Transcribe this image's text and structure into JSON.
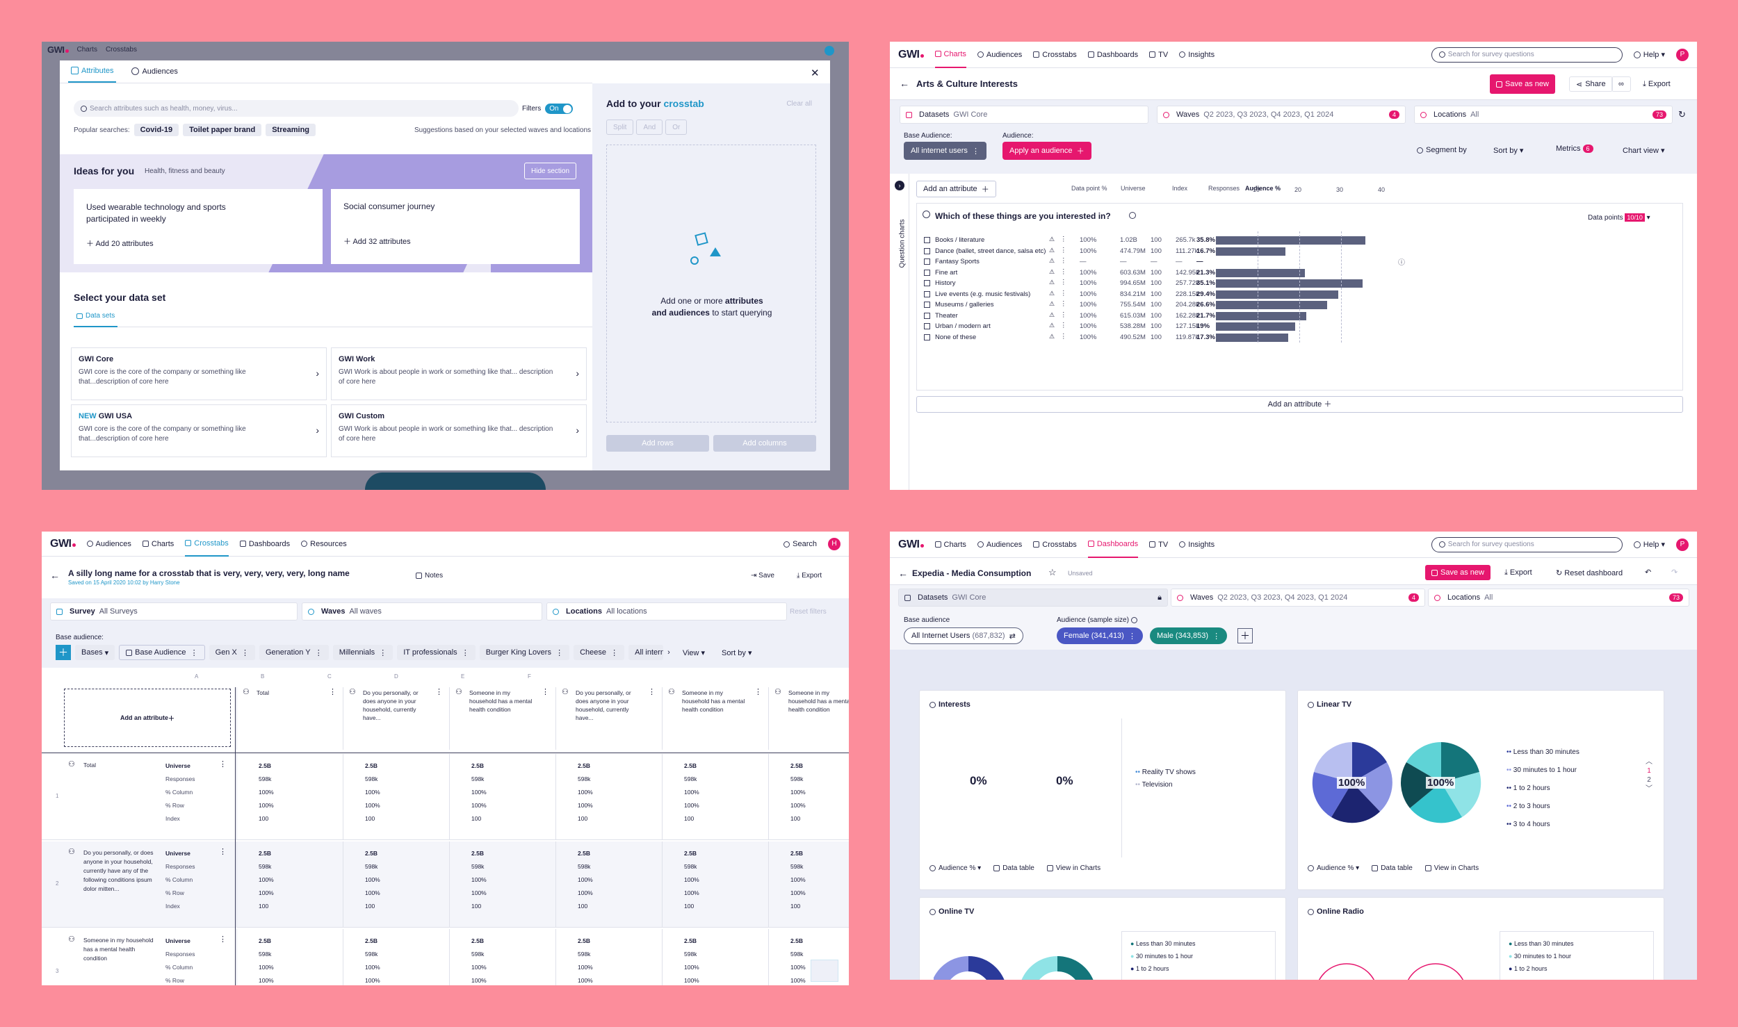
{
  "p1": {
    "bg_nav": {
      "charts": "Charts",
      "crosstabs": "Crosstabs"
    },
    "tabs": {
      "attributes": "Attributes",
      "audiences": "Audiences"
    },
    "search_placeholder": "Search attributes such as health, money, virus...",
    "filters_label": "Filters",
    "filters_state": "On",
    "popular_label": "Popular searches:",
    "popular": [
      "Covid-19",
      "Toilet paper brand",
      "Streaming"
    ],
    "suggestions": "Suggestions based on your selected waves and locations",
    "ideas_title": "Ideas for you",
    "ideas_sub": "Health, fitness and beauty",
    "hide_section": "Hide section",
    "idea1_title": "Used wearable technology and sports participated in weekly",
    "idea1_add": "Add 20 attributes",
    "idea2_title": "Social consumer journey",
    "idea2_add": "Add 32 attributes",
    "dataset_title": "Select your data set",
    "datasets_tab": "Data sets",
    "datasets": [
      {
        "new": "",
        "name": "GWI Core",
        "desc": "GWI core is the core of the company or something like that...description of core here"
      },
      {
        "new": "",
        "name": "GWI Work",
        "desc": "GWI Work is about people in work or something like that... description of core here"
      },
      {
        "new": "NEW",
        "name": "GWI USA",
        "desc": "GWI core is the core of the company or something like that...description of core here"
      },
      {
        "new": "",
        "name": "GWI Custom",
        "desc": "GWI Work is about people in work or something like that... description of core here"
      }
    ],
    "right_title_a": "Add to your",
    "right_title_b": "crosstab",
    "clear_all": "Clear all",
    "logic": [
      "Split",
      "And",
      "Or"
    ],
    "empty_a": "Add one or more",
    "empty_b": "attributes",
    "empty_c": "and audiences",
    "empty_d": "to start querying",
    "add_rows": "Add rows",
    "add_columns": "Add columns"
  },
  "p2": {
    "nav": [
      "Charts",
      "Audiences",
      "Crosstabs",
      "Dashboards",
      "TV",
      "Insights"
    ],
    "search": "Search for survey questions",
    "help": "Help",
    "avatar": "P",
    "title": "Arts & Culture Interests",
    "save_as_new": "Save as new",
    "share": "Share",
    "export": "Export",
    "datasets_label": "Datasets",
    "datasets_val": "GWI Core",
    "waves_label": "Waves",
    "waves_val": "Q2 2023, Q3 2023, Q4 2023, Q1 2024",
    "waves_count": "4",
    "locations_label": "Locations",
    "locations_val": "All",
    "locations_count": "73",
    "base_label": "Base Audience:",
    "audience_label": "Audience:",
    "base_val": "All internet users",
    "apply": "Apply an audience",
    "segment": "Segment by",
    "sortby": "Sort by",
    "metrics": "Metrics",
    "metrics_count": "6",
    "chartview": "Chart view",
    "side_label": "Question charts",
    "add_attr": "Add an attribute",
    "cols": [
      "Data point %",
      "Universe",
      "Index",
      "Responses",
      "Audience %"
    ],
    "ticks": [
      "10",
      "20",
      "30",
      "40"
    ],
    "question": "Which of these things are you interested in?",
    "dp_label": "Data points",
    "dp_val": "10/10",
    "rows": [
      {
        "label": "Books / literature",
        "dp": "100%",
        "universe": "1.02B",
        "index": "100",
        "resp": "265.7k",
        "aud": "35.8%",
        "v": 35.8
      },
      {
        "label": "Dance (ballet, street dance, salsa etc)",
        "dp": "100%",
        "universe": "474.79M",
        "index": "100",
        "resp": "111.27k",
        "aud": "16.7%",
        "v": 16.7
      },
      {
        "label": "Fantasy Sports",
        "dp": "—",
        "universe": "—",
        "index": "—",
        "resp": "—",
        "aud": "—",
        "v": 0
      },
      {
        "label": "Fine art",
        "dp": "100%",
        "universe": "603.63M",
        "index": "100",
        "resp": "142.95k",
        "aud": "21.3%",
        "v": 21.3
      },
      {
        "label": "History",
        "dp": "100%",
        "universe": "994.65M",
        "index": "100",
        "resp": "257.72k",
        "aud": "35.1%",
        "v": 35.1
      },
      {
        "label": "Live events (e.g. music festivals)",
        "dp": "100%",
        "universe": "834.21M",
        "index": "100",
        "resp": "228.15k",
        "aud": "29.4%",
        "v": 29.4
      },
      {
        "label": "Museums / galleries",
        "dp": "100%",
        "universe": "755.54M",
        "index": "100",
        "resp": "204.28k",
        "aud": "26.6%",
        "v": 26.6
      },
      {
        "label": "Theater",
        "dp": "100%",
        "universe": "615.03M",
        "index": "100",
        "resp": "162.28k",
        "aud": "21.7%",
        "v": 21.7
      },
      {
        "label": "Urban / modern art",
        "dp": "100%",
        "universe": "538.28M",
        "index": "100",
        "resp": "127.15k",
        "aud": "19%",
        "v": 19
      },
      {
        "label": "None of these",
        "dp": "100%",
        "universe": "490.52M",
        "index": "100",
        "resp": "119.87k",
        "aud": "17.3%",
        "v": 17.3
      }
    ],
    "add_attr_bottom": "Add an attribute"
  },
  "p3": {
    "nav": [
      "Audiences",
      "Charts",
      "Crosstabs",
      "Dashboards",
      "Resources"
    ],
    "search": "Search",
    "avatar": "H",
    "title": "A silly long name for a crosstab that is very, very, very, very, long name",
    "saved": "Saved on 15 April 2020 10:02 by Harry Stone",
    "notes": "Notes",
    "save": "Save",
    "export": "Export",
    "survey_label": "Survey",
    "survey_val": "All Surveys",
    "waves_label": "Waves",
    "waves_val": "All waves",
    "loc_label": "Locations",
    "loc_val": "All locations",
    "reset": "Reset filters",
    "base_label": "Base audience:",
    "bases": "Bases",
    "base_audience": "Base Audience",
    "chips": [
      "Gen X",
      "Generation Y",
      "Millennials",
      "IT professionals",
      "Burger King Lovers",
      "Cheese",
      "All intern"
    ],
    "view": "View",
    "sortby": "Sort by",
    "letters": [
      "A",
      "B",
      "C",
      "D",
      "E",
      "F"
    ],
    "add_attr": "Add an attribute",
    "col_heads": [
      "Total",
      "Do you personally, or does anyone in your household, currently have...",
      "Someone in my household has a mental health condition",
      "Do you personally, or does anyone in your household, currently have...",
      "Someone in my household has a mental health condition",
      "Someone in my household has a mental health condition"
    ],
    "row_heads": [
      {
        "n": "1",
        "label": "Total"
      },
      {
        "n": "2",
        "label": "Do you personally, or does anyone in your household, currently have any of the following conditions ipsum dolor mitten..."
      },
      {
        "n": "3",
        "label": "Someone in my household has a mental health condition"
      }
    ],
    "metrics": [
      "Universe",
      "Responses",
      "% Column",
      "% Row",
      "Index"
    ],
    "vals": [
      "2.5B",
      "598k",
      "100%",
      "100%",
      "100"
    ]
  },
  "p4": {
    "nav": [
      "Charts",
      "Audiences",
      "Crosstabs",
      "Dashboards",
      "TV",
      "Insights"
    ],
    "search": "Search for survey questions",
    "help": "Help",
    "avatar": "P",
    "title": "Expedia - Media Consumption",
    "unsaved": "Unsaved",
    "save_as_new": "Save as new",
    "export": "Export",
    "reset": "Reset dashboard",
    "datasets_label": "Datasets",
    "datasets_val": "GWI Core",
    "waves_label": "Waves",
    "waves_val": "Q2 2023, Q3 2023, Q4 2023, Q1 2024",
    "waves_count": "4",
    "loc_label": "Locations",
    "loc_val": "All",
    "loc_count": "73",
    "base_label": "Base audience",
    "aud_label": "Audience (sample size)",
    "base_chip": "All Internet Users",
    "base_size": "(687,832)",
    "female": "Female",
    "female_size": "(341,413)",
    "male": "Male",
    "male_size": "(343,853)",
    "interests": {
      "title": "Interests",
      "v1": "0%",
      "v2": "0%",
      "legend": [
        "Reality TV shows",
        "Television"
      ]
    },
    "linear": {
      "title": "Linear TV",
      "pie1": "100%",
      "pie2": "100%",
      "legend": [
        "Less than 30 minutes",
        "30 minutes to 1 hour",
        "1 to 2 hours",
        "2 to 3 hours",
        "3 to 4 hours"
      ],
      "pager": [
        "1",
        "2"
      ]
    },
    "footer": {
      "aud": "Audience %",
      "table": "Data table",
      "view": "View in Charts"
    },
    "online_tv": {
      "title": "Online TV",
      "legend": [
        "Less than 30 minutes",
        "30 minutes to 1 hour",
        "1 to 2 hours"
      ]
    },
    "online_radio": {
      "title": "Online Radio",
      "legend": [
        "Less than 30 minutes",
        "30 minutes to 1 hour",
        "1 to 2 hours"
      ]
    }
  }
}
